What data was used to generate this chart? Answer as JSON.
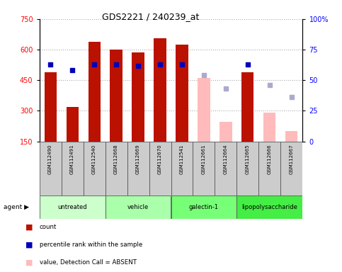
{
  "title": "GDS2221 / 240239_at",
  "samples": [
    "GSM112490",
    "GSM112491",
    "GSM112540",
    "GSM112668",
    "GSM112669",
    "GSM112670",
    "GSM112541",
    "GSM112661",
    "GSM112664",
    "GSM112665",
    "GSM112666",
    "GSM112667"
  ],
  "groups": [
    {
      "name": "untreated",
      "color": "#ccffcc",
      "samples": [
        0,
        1,
        2
      ]
    },
    {
      "name": "vehicle",
      "color": "#aaffaa",
      "samples": [
        3,
        4,
        5
      ]
    },
    {
      "name": "galectin-1",
      "color": "#77ff77",
      "samples": [
        6,
        7,
        8
      ]
    },
    {
      "name": "lipopolysaccharide",
      "color": "#44ee44",
      "samples": [
        9,
        10,
        11
      ]
    }
  ],
  "count_values": [
    490,
    320,
    640,
    600,
    585,
    655,
    625,
    null,
    null,
    490,
    null,
    null
  ],
  "count_absent": [
    null,
    null,
    null,
    null,
    null,
    null,
    null,
    460,
    245,
    null,
    290,
    200
  ],
  "rank_present": [
    63,
    58,
    63,
    63,
    62,
    63,
    63,
    null,
    null,
    63,
    null,
    null
  ],
  "rank_absent": [
    null,
    null,
    null,
    null,
    null,
    null,
    null,
    54,
    43,
    null,
    46,
    36
  ],
  "ylim_left": [
    150,
    750
  ],
  "ylim_right": [
    0,
    100
  ],
  "yticks_left": [
    150,
    300,
    450,
    600,
    750
  ],
  "yticks_right": [
    0,
    25,
    50,
    75,
    100
  ],
  "ytick_labels_right": [
    "0",
    "25",
    "50",
    "75",
    "100%"
  ],
  "bar_width": 0.55,
  "count_color": "#bb1100",
  "count_absent_color": "#ffbbbb",
  "rank_present_color": "#0000bb",
  "rank_absent_color": "#aaaacc",
  "grid_color": "#aaaaaa",
  "bg_sample": "#cccccc",
  "marker_size": 4
}
